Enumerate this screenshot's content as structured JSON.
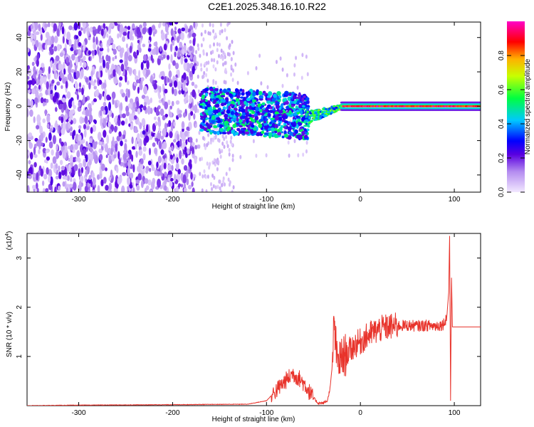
{
  "title": "C2E1.2025.348.16.10.R22",
  "chart_data": [
    {
      "type": "heatmap",
      "xlabel": "Height of straight line (km)",
      "ylabel": "Frequency (Hz)",
      "xlim": [
        -355,
        128
      ],
      "ylim": [
        -50,
        49
      ],
      "xticks": [
        "-300",
        "-200",
        "-100",
        "0",
        "100"
      ],
      "yticks": [
        "-40",
        "-20",
        "0",
        "20",
        "40"
      ],
      "colorbar": {
        "label": "Normalized spectral amplitude",
        "range": [
          0,
          1
        ],
        "ticks": [
          "0.0",
          "0.2",
          "0.4",
          "0.6",
          "0.8"
        ],
        "colors": [
          "#f2e8ff",
          "#8a2be2",
          "#0000ff",
          "#00e5ff",
          "#00ff00",
          "#ffff00",
          "#ff8000",
          "#ff0000",
          "#ff00ff"
        ]
      },
      "regions": [
        {
          "x_range": [
            -355,
            -175
          ],
          "freq_range": [
            -50,
            49
          ],
          "description_amplitude": 0.12
        },
        {
          "x_range": [
            -170,
            -55
          ],
          "freq_range": [
            -15,
            12
          ],
          "description_amplitude": 0.35
        },
        {
          "x_range": [
            -55,
            -20
          ],
          "freq_range": [
            -8,
            3
          ],
          "description_amplitude": 0.5
        },
        {
          "x_range": [
            -20,
            128
          ],
          "freq_range": [
            -1,
            1
          ],
          "description_amplitude": 0.95
        }
      ]
    },
    {
      "type": "line",
      "xlabel": "Height of straight line (km)",
      "ylabel": "SNR (10 * v/v)",
      "scale_label": "(x10",
      "scale_exp": "4",
      "scale_close": ")",
      "xlim": [
        -355,
        128
      ],
      "ylim": [
        0,
        3.5
      ],
      "xticks": [
        "-300",
        "-200",
        "-100",
        "0",
        "100"
      ],
      "yticks": [
        "1",
        "2",
        "3"
      ],
      "color": "#e8332b",
      "series": [
        {
          "name": "SNR",
          "x": [
            -355,
            -300,
            -200,
            -120,
            -100,
            -90,
            -80,
            -72,
            -65,
            -58,
            -52,
            -45,
            -40,
            -35,
            -32,
            -30,
            -28,
            -25,
            -20,
            -15,
            -10,
            -5,
            0,
            10,
            20,
            30,
            40,
            50,
            60,
            70,
            80,
            88,
            92,
            94,
            95,
            96,
            97,
            98,
            100,
            110,
            128
          ],
          "y": [
            0.0,
            0.01,
            0.02,
            0.03,
            0.1,
            0.3,
            0.5,
            0.65,
            0.55,
            0.4,
            0.2,
            0.05,
            0.05,
            0.1,
            0.4,
            0.8,
            1.7,
            0.9,
            0.95,
            1.05,
            1.15,
            1.25,
            1.3,
            1.45,
            1.55,
            1.6,
            1.62,
            1.63,
            1.62,
            1.63,
            1.62,
            1.65,
            1.8,
            2.3,
            3.45,
            0.1,
            2.6,
            1.6,
            1.6,
            1.6,
            1.6
          ]
        }
      ]
    }
  ]
}
